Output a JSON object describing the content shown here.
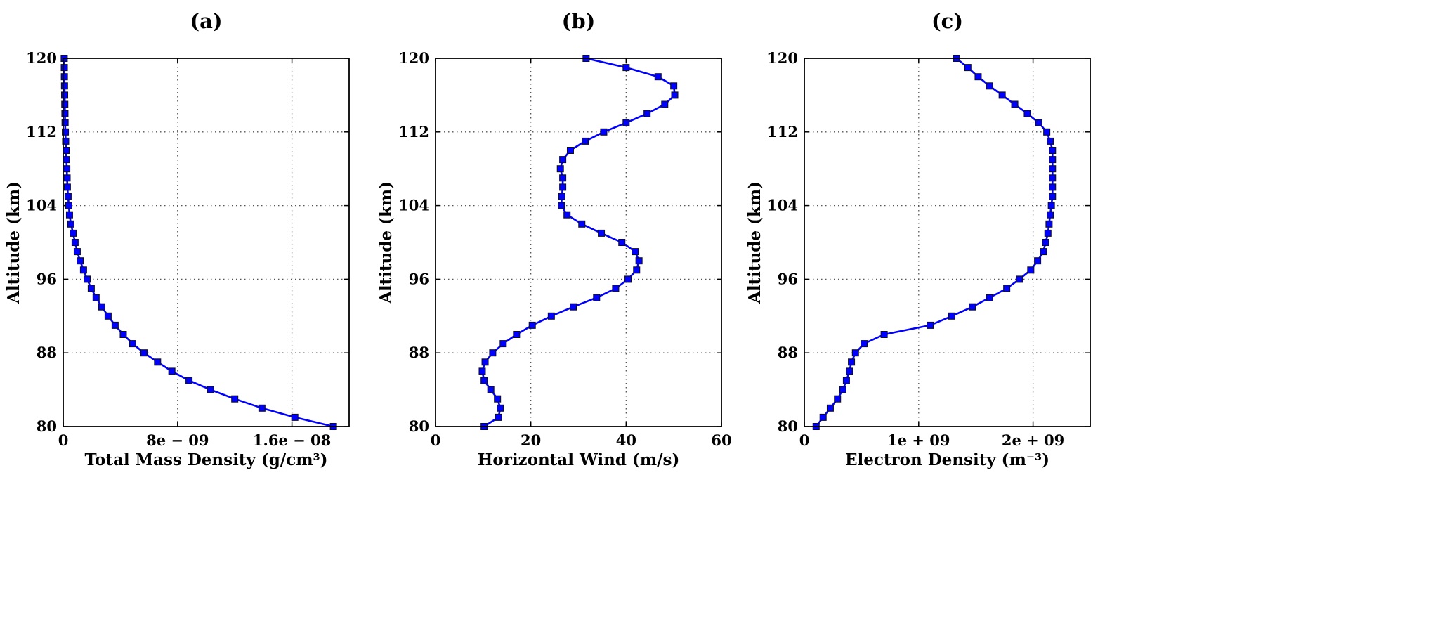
{
  "chart_data": [
    {
      "type": "line",
      "panel_label": "(a)",
      "xlabel": "Total Mass Density (g/cm³)",
      "ylabel": "Altitude (km)",
      "xlim": [
        0,
        2e-08
      ],
      "ylim": [
        80,
        120
      ],
      "xticks": [
        0,
        8e-09,
        1.6e-08
      ],
      "xtick_labels": [
        "0",
        "8e − 09",
        "1.6e − 08"
      ],
      "yticks": [
        80,
        88,
        96,
        104,
        112,
        120
      ],
      "ytick_labels": [
        "80",
        "88",
        "96",
        "104",
        "112",
        "120"
      ],
      "grid": true,
      "series": [
        {
          "name": "Total Mass Density",
          "color": "#0000ff",
          "marker": "square",
          "altitude": [
            80,
            81,
            82,
            83,
            84,
            85,
            86,
            87,
            88,
            89,
            90,
            91,
            92,
            93,
            94,
            95,
            96,
            97,
            98,
            99,
            100,
            101,
            102,
            103,
            104,
            105,
            106,
            107,
            108,
            109,
            110,
            111,
            112,
            113,
            114,
            115,
            116,
            117,
            118,
            119,
            120
          ],
          "values": [
            1.89e-08,
            1.62e-08,
            1.39e-08,
            1.2e-08,
            1.03e-08,
            8.8e-09,
            7.6e-09,
            6.6e-09,
            5.65e-09,
            4.86e-09,
            4.2e-09,
            3.63e-09,
            3.14e-09,
            2.7e-09,
            2.3e-09,
            1.96e-09,
            1.67e-09,
            1.42e-09,
            1.18e-09,
            9.8e-10,
            8.3e-10,
            6.9e-10,
            5.4e-10,
            4.4e-10,
            3.9e-10,
            3.4e-10,
            2.9e-10,
            2.7e-10,
            2.5e-10,
            2.2e-10,
            2e-10,
            1.7e-10,
            1.5e-10,
            1.3e-10,
            1.2e-10,
            1.1e-10,
            1e-10,
            9e-11,
            8e-11,
            7.5e-11,
            7e-11
          ]
        }
      ]
    },
    {
      "type": "line",
      "panel_label": "(b)",
      "xlabel": "Horizontal Wind (m/s)",
      "ylabel": "Altitude (km)",
      "xlim": [
        0,
        60
      ],
      "ylim": [
        80,
        120
      ],
      "xticks": [
        0,
        20,
        40,
        60
      ],
      "xtick_labels": [
        "0",
        "20",
        "40",
        "60"
      ],
      "yticks": [
        80,
        88,
        96,
        104,
        112,
        120
      ],
      "ytick_labels": [
        "80",
        "88",
        "96",
        "104",
        "112",
        "120"
      ],
      "grid": true,
      "series": [
        {
          "name": "Horizontal Wind",
          "color": "#0000ff",
          "marker": "square",
          "altitude": [
            80,
            81,
            82,
            83,
            84,
            85,
            86,
            87,
            88,
            89,
            90,
            91,
            92,
            93,
            94,
            95,
            96,
            97,
            98,
            99,
            100,
            101,
            102,
            103,
            104,
            105,
            106,
            107,
            108,
            109,
            110,
            111,
            112,
            113,
            114,
            115,
            116,
            117,
            118,
            119,
            120
          ],
          "values": [
            10.2,
            13.2,
            13.6,
            13.0,
            11.6,
            10.2,
            9.8,
            10.4,
            12.0,
            14.2,
            17.0,
            20.3,
            24.3,
            28.9,
            33.8,
            37.8,
            40.4,
            42.2,
            42.7,
            41.9,
            39.1,
            34.8,
            30.7,
            27.6,
            26.4,
            26.5,
            26.7,
            26.7,
            26.2,
            26.7,
            28.3,
            31.4,
            35.3,
            40.0,
            44.4,
            48.1,
            50.2,
            50.0,
            46.7,
            40.0,
            31.6
          ]
        }
      ]
    },
    {
      "type": "line",
      "panel_label": "(c)",
      "xlabel": "Electron Density (m⁻³)",
      "ylabel": "Altitude (km)",
      "xlim": [
        0,
        2500000000.0
      ],
      "ylim": [
        80,
        120
      ],
      "xticks": [
        0,
        1000000000.0,
        2000000000.0
      ],
      "xtick_labels": [
        "0",
        "1e + 09",
        "2e + 09"
      ],
      "yticks": [
        80,
        88,
        96,
        104,
        112,
        120
      ],
      "ytick_labels": [
        "80",
        "88",
        "96",
        "104",
        "112",
        "120"
      ],
      "grid": true,
      "series": [
        {
          "name": "Electron Density",
          "color": "#0000ff",
          "marker": "square",
          "altitude": [
            80,
            81,
            82,
            83,
            84,
            85,
            86,
            87,
            88,
            89,
            90,
            91,
            92,
            93,
            94,
            95,
            96,
            97,
            98,
            99,
            100,
            101,
            102,
            103,
            104,
            105,
            106,
            107,
            108,
            109,
            110,
            111,
            112,
            113,
            114,
            115,
            116,
            117,
            118,
            119,
            120
          ],
          "values": [
            103000000.0,
            164000000.0,
            227000000.0,
            290000000.0,
            337000000.0,
            368000000.0,
            394000000.0,
            412000000.0,
            447000000.0,
            522000000.0,
            698000000.0,
            1100000000.0,
            1290000000.0,
            1470000000.0,
            1620000000.0,
            1770000000.0,
            1880000000.0,
            1980000000.0,
            2040000000.0,
            2090000000.0,
            2110000000.0,
            2130000000.0,
            2140000000.0,
            2150000000.0,
            2160000000.0,
            2170000000.0,
            2170000000.0,
            2170000000.0,
            2170000000.0,
            2170000000.0,
            2170000000.0,
            2150000000.0,
            2120000000.0,
            2050000000.0,
            1950000000.0,
            1840000000.0,
            1730000000.0,
            1620000000.0,
            1520000000.0,
            1430000000.0,
            1330000000.0
          ]
        }
      ]
    }
  ]
}
